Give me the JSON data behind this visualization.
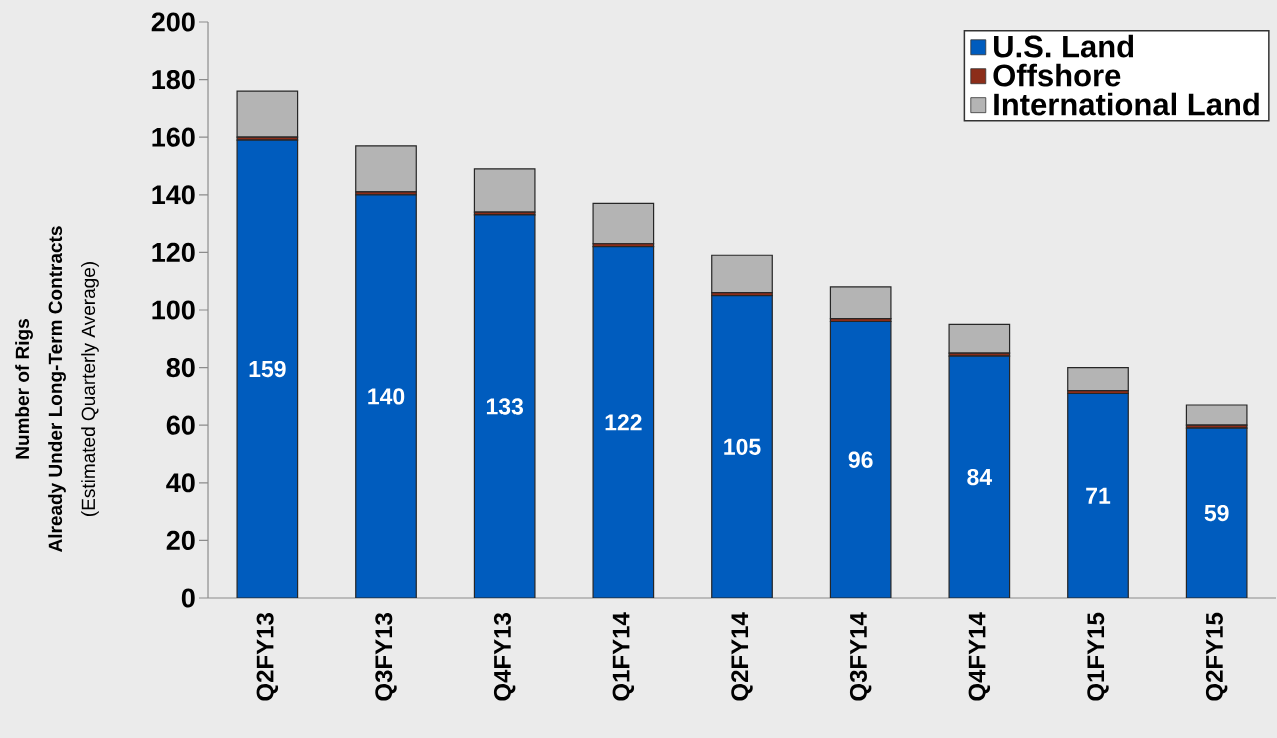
{
  "chart_data": {
    "type": "bar",
    "stacked": true,
    "ylabel": "**Number of Rigs Already Under Long-Term Contracts** (Estimated Quarterly Average)",
    "categories": [
      "Q2FY13",
      "Q3FY13",
      "Q4FY13",
      "Q1FY14",
      "Q2FY14",
      "Q3FY14",
      "Q4FY14",
      "Q1FY15",
      "Q2FY15"
    ],
    "series": [
      {
        "name": "U.S. Land",
        "color": "#005cbe",
        "values": [
          159,
          140,
          133,
          122,
          105,
          96,
          84,
          71,
          59
        ],
        "value_labels": [
          "159",
          "140",
          "133",
          "122",
          "105",
          "96",
          "84",
          "71",
          "59"
        ]
      },
      {
        "name": "Offshore",
        "color": "#8c2d19",
        "values": [
          1,
          1,
          1,
          1,
          1,
          1,
          1,
          1,
          1
        ]
      },
      {
        "name": "International Land",
        "color": "#b4b4b4",
        "values": [
          16,
          16,
          15,
          14,
          13,
          11,
          10,
          8,
          7
        ]
      }
    ],
    "ylim": [
      0,
      200
    ],
    "yticks": [
      0,
      20,
      40,
      60,
      80,
      100,
      120,
      140,
      160,
      180,
      200
    ],
    "legend": "top right"
  }
}
